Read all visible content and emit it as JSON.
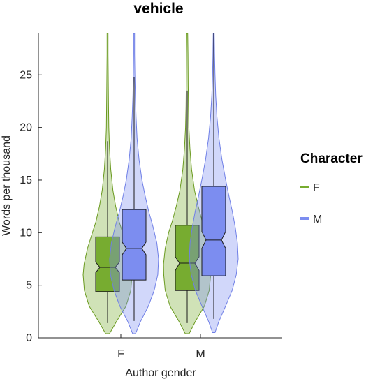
{
  "chart_data": {
    "type": "violin",
    "title": "vehicle",
    "xlabel": "Author gender",
    "ylabel": "Words per thousand",
    "categories": [
      "F",
      "M"
    ],
    "ylim": [
      0,
      29
    ],
    "yticks": [
      0,
      5,
      10,
      15,
      20,
      25
    ],
    "grid": false,
    "legend": {
      "title": "Character",
      "placement": "right"
    },
    "series": [
      {
        "name": "F",
        "color": "#77AC30",
        "stats": [
          {
            "category": "F",
            "q1": 4.4,
            "median": 6.7,
            "q3": 9.6,
            "whisker_low": 1.4,
            "whisker_high": 18.7,
            "notch_low": 6.2,
            "notch_high": 7.2,
            "min": 0.4,
            "max": 29
          },
          {
            "category": "M",
            "q1": 4.5,
            "median": 7.1,
            "q3": 10.7,
            "whisker_low": 1.4,
            "whisker_high": 23.5,
            "notch_low": 6.4,
            "notch_high": 7.7,
            "min": 0.4,
            "max": 29
          }
        ],
        "density": [
          {
            "category": "F",
            "y": [
              0.4,
              1.5,
              3,
              4.5,
              6,
              7,
              8.5,
              10,
              11,
              12.5,
              14,
              16,
              18,
              20,
              22,
              24,
              27,
              29
            ],
            "w": [
              0.08,
              0.35,
              0.75,
              0.95,
              1.0,
              0.96,
              0.82,
              0.62,
              0.48,
              0.33,
              0.22,
              0.13,
              0.08,
              0.05,
              0.04,
              0.03,
              0.02,
              0.02
            ]
          },
          {
            "category": "M",
            "y": [
              0.4,
              1.5,
              3,
              4.5,
              6,
              7,
              8.5,
              10,
              11,
              12.5,
              14,
              16,
              18,
              20,
              22,
              24,
              27,
              29
            ],
            "w": [
              0.08,
              0.32,
              0.7,
              0.9,
              0.96,
              0.97,
              0.9,
              0.76,
              0.62,
              0.45,
              0.3,
              0.18,
              0.11,
              0.07,
              0.05,
              0.04,
              0.03,
              0.02
            ]
          }
        ]
      },
      {
        "name": "M",
        "color": "#7C8DF0",
        "stats": [
          {
            "category": "F",
            "q1": 5.5,
            "median": 8.5,
            "q3": 12.2,
            "whisker_low": 1.6,
            "whisker_high": 24.8,
            "notch_low": 7.9,
            "notch_high": 9.1,
            "min": 0.4,
            "max": 29
          },
          {
            "category": "M",
            "q1": 5.9,
            "median": 9.3,
            "q3": 14.4,
            "whisker_low": 1.8,
            "whisker_high": 29,
            "notch_low": 8.5,
            "notch_high": 10.1,
            "min": 0.5,
            "max": 29
          }
        ],
        "density": [
          {
            "category": "F",
            "y": [
              0.4,
              1.5,
              3,
              4.5,
              6,
              7.5,
              9,
              10.5,
              12,
              13.5,
              15,
              17,
              19,
              21,
              23,
              25,
              27,
              29
            ],
            "w": [
              0.06,
              0.25,
              0.58,
              0.82,
              0.97,
              1.0,
              0.93,
              0.78,
              0.6,
              0.45,
              0.32,
              0.2,
              0.12,
              0.08,
              0.05,
              0.03,
              0.02,
              0.02
            ]
          },
          {
            "category": "M",
            "y": [
              0.5,
              1.5,
              3,
              4.5,
              6,
              7.5,
              9,
              10.5,
              12,
              13.5,
              15,
              17,
              19,
              21,
              23,
              25,
              27,
              29
            ],
            "w": [
              0.05,
              0.2,
              0.48,
              0.75,
              0.92,
              1.0,
              0.97,
              0.88,
              0.76,
              0.62,
              0.49,
              0.33,
              0.21,
              0.13,
              0.08,
              0.05,
              0.03,
              0.02
            ]
          }
        ]
      }
    ]
  }
}
